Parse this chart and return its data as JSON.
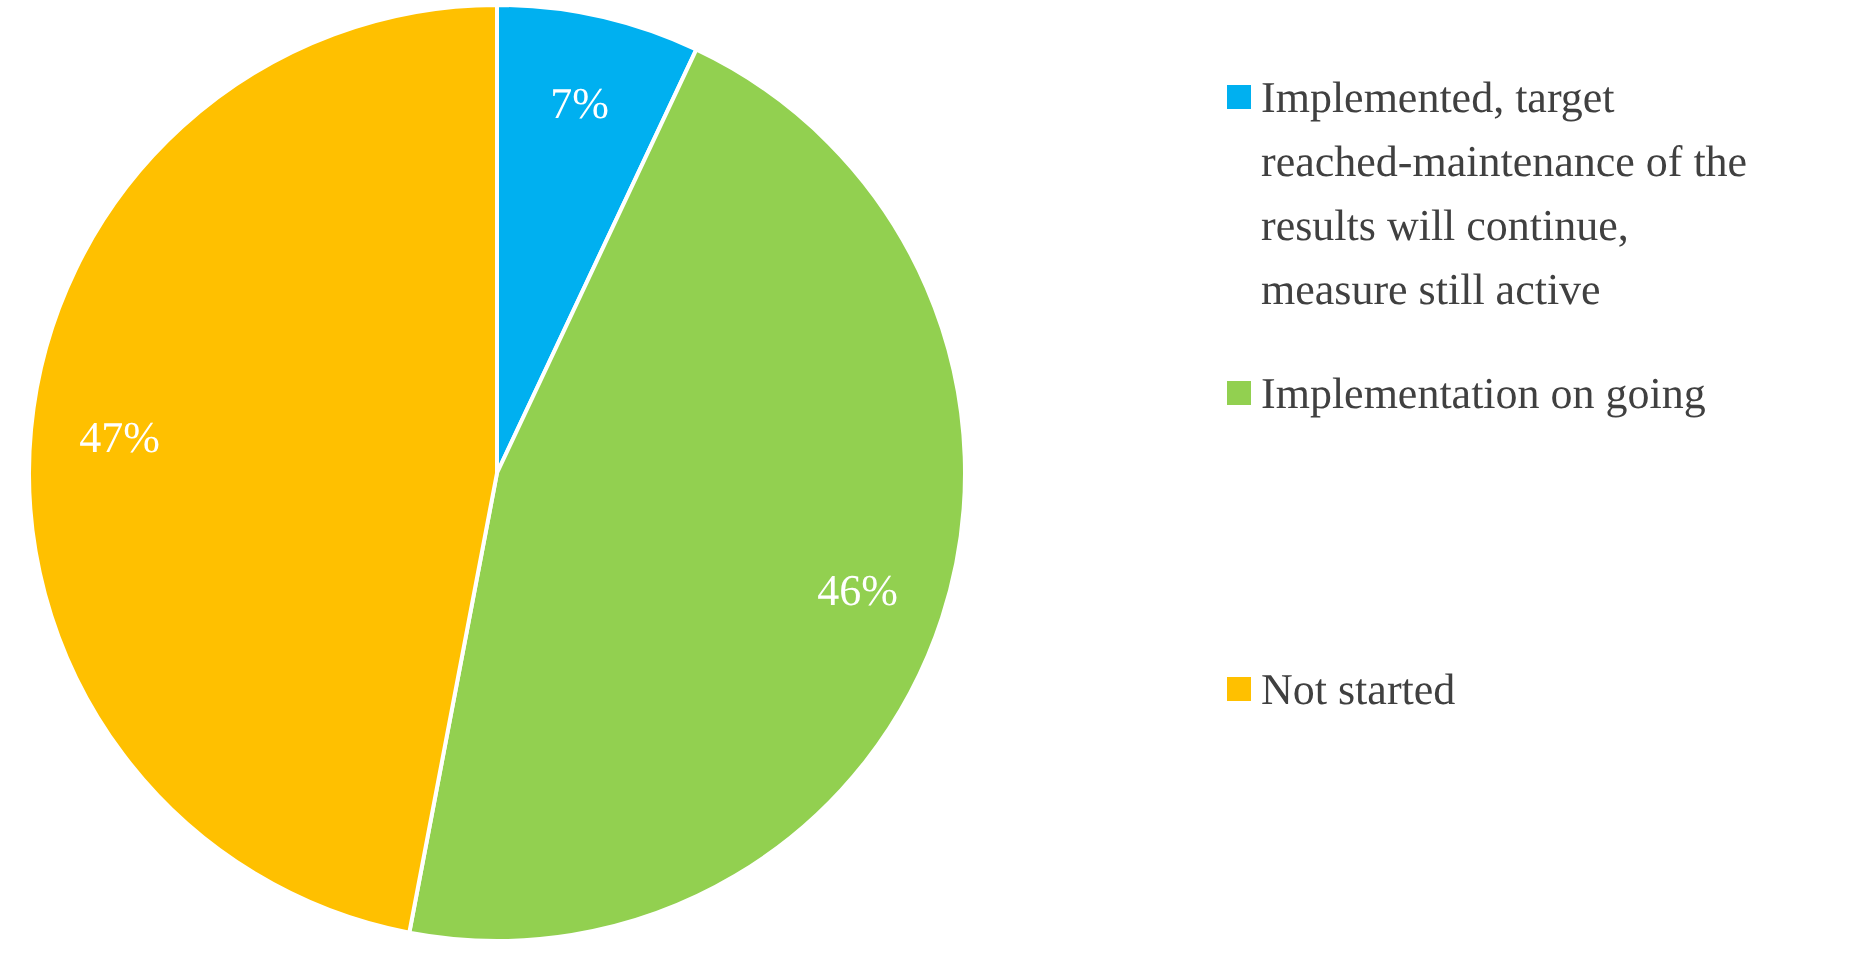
{
  "chart_data": {
    "type": "pie",
    "categories": [
      "Implemented, target reached-maintenance of the results will continue, measure still active",
      "Implementation on going",
      "Not started"
    ],
    "values": [
      7,
      46,
      47
    ],
    "colors": [
      "#00b0f0",
      "#92d050",
      "#ffc000"
    ],
    "value_labels": [
      "7%",
      "46%",
      "47%"
    ],
    "legend": "right"
  }
}
